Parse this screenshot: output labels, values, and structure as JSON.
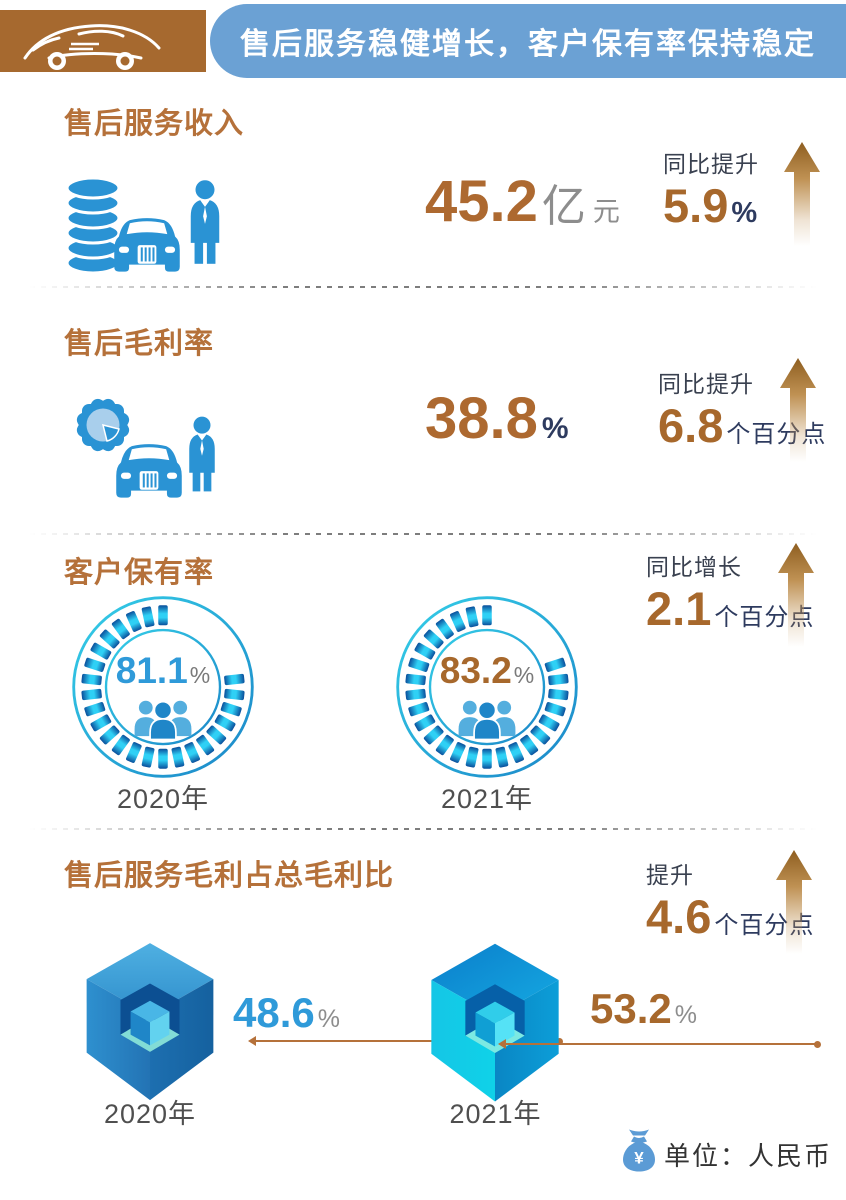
{
  "colors": {
    "brand_brown": "#a6692f",
    "title_brown": "#b5713a",
    "number_brown": "#a7682c",
    "navy": "#2e3b5f",
    "blue": "#2f9ad9",
    "header_blue": "#6ba1d4",
    "icon_blue": "#2a93d4",
    "unit_gray": "#8d8d8d"
  },
  "header": {
    "title": "售后服务稳健增长，客户保有率保持稳定",
    "logo": "sports-car-line-art"
  },
  "sections": [
    {
      "id": "after-sales-revenue",
      "title": "售后服务收入",
      "icon": "coins-car-person",
      "value": "45.2",
      "unit_primary": "亿",
      "unit_secondary": "元",
      "change": {
        "label": "同比提升",
        "value": "5.9",
        "unit": "%"
      }
    },
    {
      "id": "after-sales-gross-margin",
      "title": "售后毛利率",
      "icon": "gear-pie-car-person",
      "value": "38.8",
      "unit_primary": "%",
      "change": {
        "label": "同比提升",
        "value": "6.8",
        "unit": "个百分点"
      }
    },
    {
      "id": "customer-retention",
      "title": "客户保有率",
      "change": {
        "label": "同比增长",
        "value": "2.1",
        "unit": "个百分点"
      },
      "donuts": [
        {
          "value": 81.1,
          "display": "81.1",
          "unit": "%",
          "year": "2020年",
          "value_color": "#2f9ad9"
        },
        {
          "value": 83.2,
          "display": "83.2",
          "unit": "%",
          "year": "2021年",
          "value_color": "#a7682c"
        }
      ]
    },
    {
      "id": "after-sales-profit-share",
      "title": "售后服务毛利占总毛利比",
      "change": {
        "label": "提升",
        "value": "4.6",
        "unit": "个百分点"
      },
      "cubes": [
        {
          "display": "48.6",
          "unit": "%",
          "year": "2020年",
          "value_color": "#2f9ad9"
        },
        {
          "display": "53.2",
          "unit": "%",
          "year": "2021年",
          "value_color": "#a7682c"
        }
      ]
    }
  ],
  "footer": {
    "icon": "money-bag",
    "unit_label": "单位：人民币"
  },
  "chart_data": [
    {
      "type": "stat",
      "title": "售后服务收入",
      "value": 45.2,
      "unit": "亿元",
      "change_label": "同比提升",
      "change_value": 5.9,
      "change_unit": "%"
    },
    {
      "type": "stat",
      "title": "售后毛利率",
      "value": 38.8,
      "unit": "%",
      "change_label": "同比提升",
      "change_value": 6.8,
      "change_unit": "个百分点"
    },
    {
      "type": "donut",
      "title": "客户保有率",
      "categories": [
        "2020年",
        "2021年"
      ],
      "values": [
        81.1,
        83.2
      ],
      "unit": "%",
      "change_label": "同比增长",
      "change_value": 2.1,
      "change_unit": "个百分点"
    },
    {
      "type": "pictorial-cube",
      "title": "售后服务毛利占总毛利比",
      "categories": [
        "2020年",
        "2021年"
      ],
      "values": [
        48.6,
        53.2
      ],
      "unit": "%",
      "change_label": "提升",
      "change_value": 4.6,
      "change_unit": "个百分点"
    }
  ]
}
